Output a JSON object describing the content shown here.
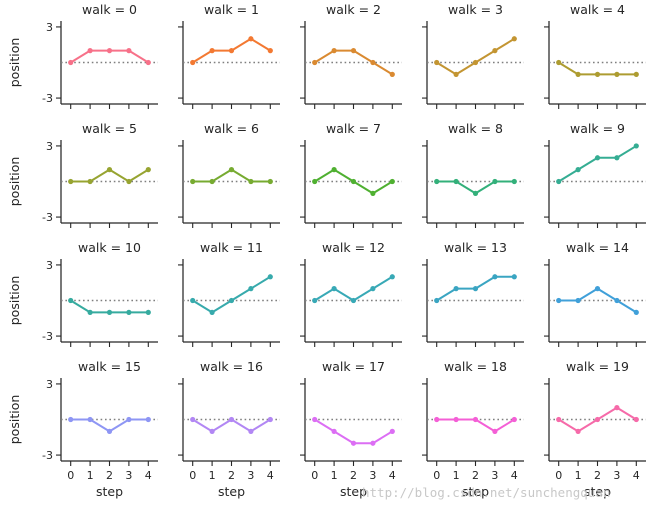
{
  "chart_data": {
    "type": "line",
    "facet_label": "walk",
    "xlabel": "step",
    "ylabel": "position",
    "x": [
      0,
      1,
      2,
      3,
      4
    ],
    "xticks": [
      0,
      1,
      2,
      3,
      4
    ],
    "xlim": [
      -0.5,
      4.5
    ],
    "yticks": [
      -3,
      3
    ],
    "ylim": [
      -3.5,
      3.5
    ],
    "reference_line": {
      "y": 0,
      "style": "dotted",
      "color": "#7f7f7f"
    },
    "grid": false,
    "facets": [
      {
        "title": "walk = 0",
        "color": "#f77189",
        "values": [
          0,
          1,
          1,
          1,
          0
        ]
      },
      {
        "title": "walk = 1",
        "color": "#f37932",
        "values": [
          0,
          1,
          1,
          2,
          1
        ]
      },
      {
        "title": "walk = 2",
        "color": "#da8a31",
        "values": [
          0,
          1,
          1,
          0,
          -1
        ]
      },
      {
        "title": "walk = 3",
        "color": "#c39532",
        "values": [
          0,
          -1,
          0,
          1,
          2
        ]
      },
      {
        "title": "walk = 4",
        "color": "#ad9c31",
        "values": [
          0,
          -1,
          -1,
          -1,
          -1
        ]
      },
      {
        "title": "walk = 5",
        "color": "#97a431",
        "values": [
          0,
          0,
          1,
          0,
          1
        ]
      },
      {
        "title": "walk = 6",
        "color": "#77ab31",
        "values": [
          0,
          0,
          1,
          0,
          0
        ]
      },
      {
        "title": "walk = 7",
        "color": "#4fb031",
        "values": [
          0,
          1,
          0,
          -1,
          0
        ]
      },
      {
        "title": "walk = 8",
        "color": "#33b07a",
        "values": [
          0,
          0,
          -1,
          0,
          0
        ]
      },
      {
        "title": "walk = 9",
        "color": "#35ad93",
        "values": [
          0,
          1,
          2,
          2,
          3
        ]
      },
      {
        "title": "walk = 10",
        "color": "#36ab9f",
        "values": [
          0,
          -1,
          -1,
          -1,
          -1
        ]
      },
      {
        "title": "walk = 11",
        "color": "#37aaac",
        "values": [
          0,
          -1,
          0,
          1,
          2
        ]
      },
      {
        "title": "walk = 12",
        "color": "#38a9b6",
        "values": [
          0,
          1,
          0,
          1,
          2
        ]
      },
      {
        "title": "walk = 13",
        "color": "#3aa5c2",
        "values": [
          0,
          1,
          1,
          2,
          2
        ]
      },
      {
        "title": "walk = 14",
        "color": "#40a0d9",
        "values": [
          0,
          0,
          1,
          0,
          -1
        ]
      },
      {
        "title": "walk = 15",
        "color": "#8e96f4",
        "values": [
          0,
          0,
          -1,
          0,
          0
        ]
      },
      {
        "title": "walk = 16",
        "color": "#b287f4",
        "values": [
          0,
          -1,
          0,
          -1,
          0
        ]
      },
      {
        "title": "walk = 17",
        "color": "#dc6ef4",
        "values": [
          0,
          -1,
          -2,
          -2,
          -1
        ]
      },
      {
        "title": "walk = 18",
        "color": "#f45fd6",
        "values": [
          0,
          0,
          0,
          -1,
          0
        ]
      },
      {
        "title": "walk = 19",
        "color": "#f66aa9",
        "values": [
          0,
          -1,
          0,
          1,
          0
        ]
      }
    ]
  },
  "watermark": "http://blog.csdn.net/sunchengquan"
}
